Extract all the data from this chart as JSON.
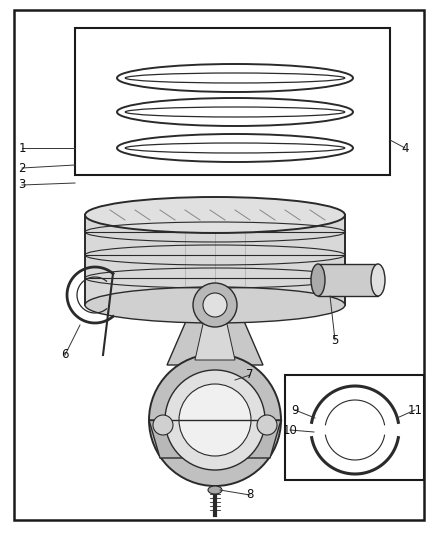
{
  "bg_color": "#ffffff",
  "border_color": "#1a1a1a",
  "line_color": "#2a2a2a",
  "figsize": [
    4.38,
    5.33
  ],
  "dpi": 100
}
